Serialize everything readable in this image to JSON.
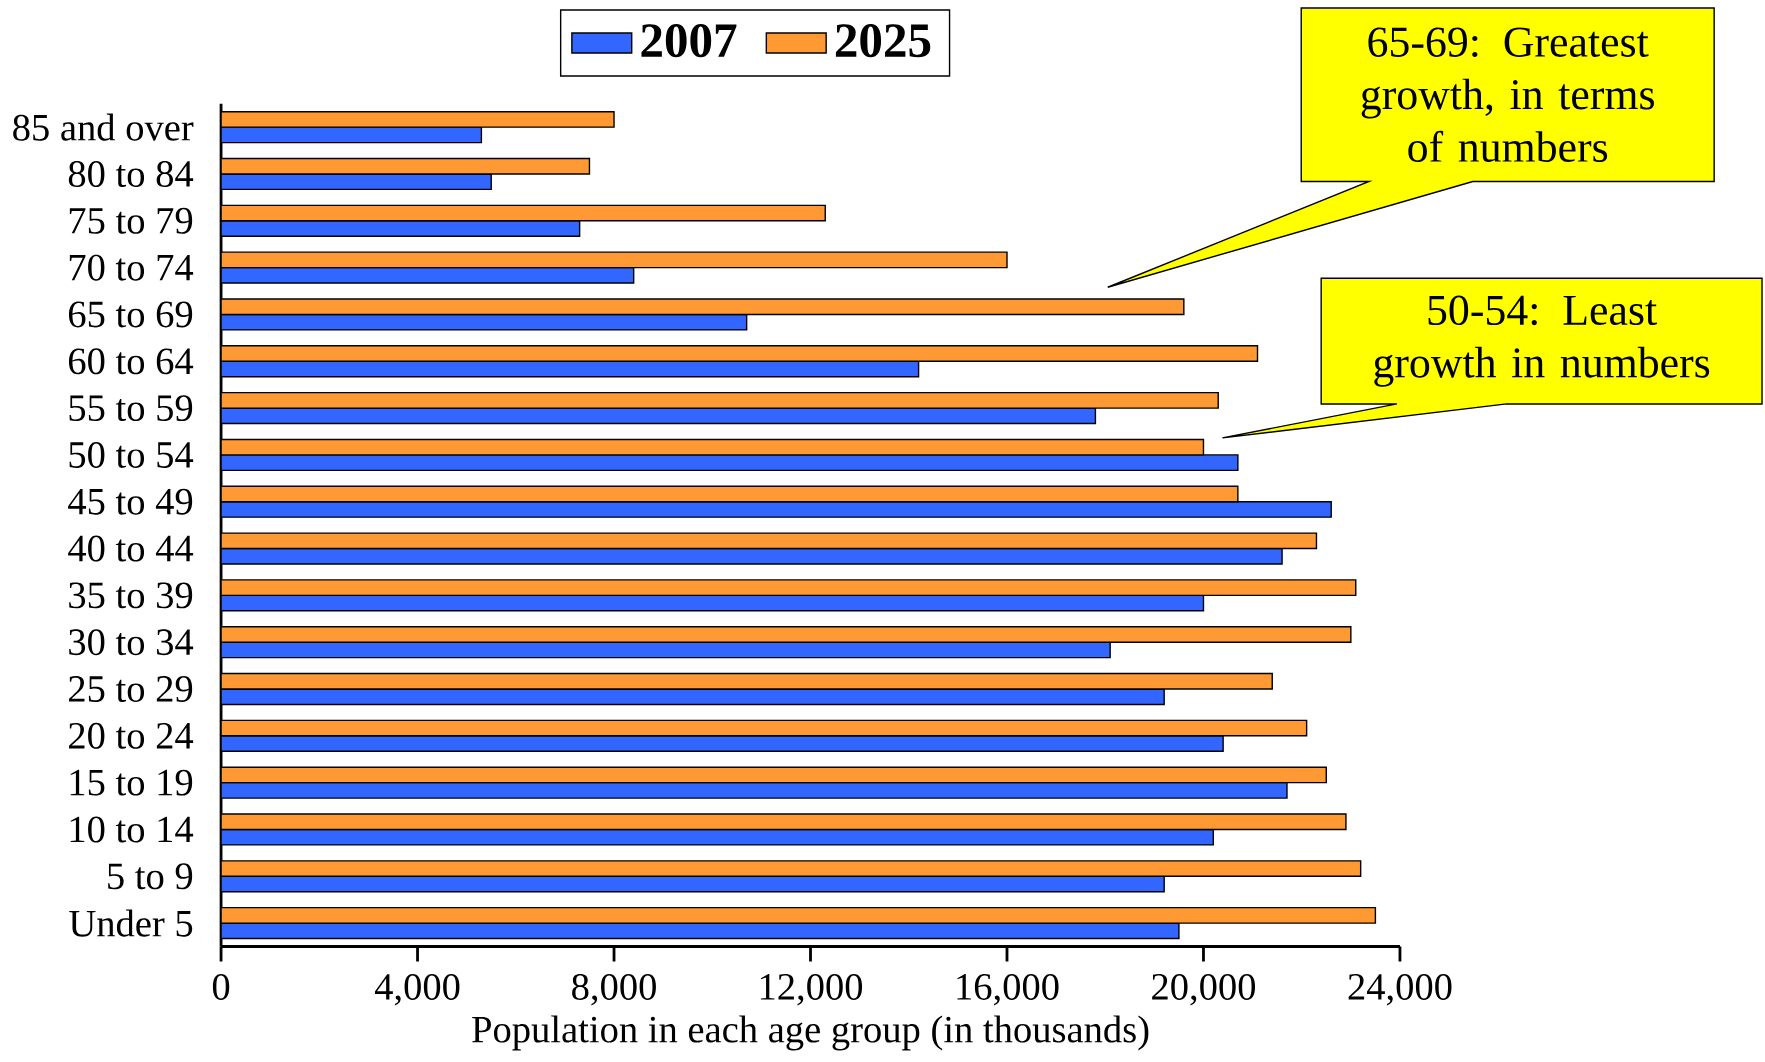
{
  "chart_data": {
    "type": "bar",
    "orientation": "horizontal",
    "categories": [
      "85 and over",
      "80 to 84",
      "75 to 79",
      "70 to 74",
      "65 to 69",
      "60 to 64",
      "55 to 59",
      "50 to 54",
      "45 to 49",
      "40 to 44",
      "35 to 39",
      "30 to 34",
      "25 to 29",
      "20 to 24",
      "15 to 19",
      "10 to 14",
      "5 to 9",
      "Under 5"
    ],
    "series": [
      {
        "name": "2007",
        "color": "#3366ff",
        "values": [
          5300,
          5500,
          7300,
          8400,
          10700,
          14200,
          17800,
          20700,
          22600,
          21600,
          20000,
          18100,
          19200,
          20400,
          21700,
          20200,
          19200,
          19500
        ]
      },
      {
        "name": "2025",
        "color": "#ff9933",
        "values": [
          8000,
          7500,
          12300,
          16000,
          19600,
          21100,
          20300,
          20000,
          20700,
          22300,
          23100,
          23000,
          21400,
          22100,
          22500,
          22900,
          23200,
          23500
        ]
      }
    ],
    "xlim": [
      0,
      24000
    ],
    "xticks": [
      {
        "value": 0,
        "label": "0"
      },
      {
        "value": 4000,
        "label": "4,000"
      },
      {
        "value": 8000,
        "label": "8,000"
      },
      {
        "value": 12000,
        "label": "12,000"
      },
      {
        "value": 16000,
        "label": "16,000"
      },
      {
        "value": 20000,
        "label": "20,000"
      },
      {
        "value": 24000,
        "label": "24,000"
      }
    ],
    "xlabel": "Population in each age group (in thousands)",
    "legend": "top",
    "annotations": [
      "65-69: Greatest growth, in terms of numbers",
      "50-54: Least growth in numbers"
    ]
  }
}
